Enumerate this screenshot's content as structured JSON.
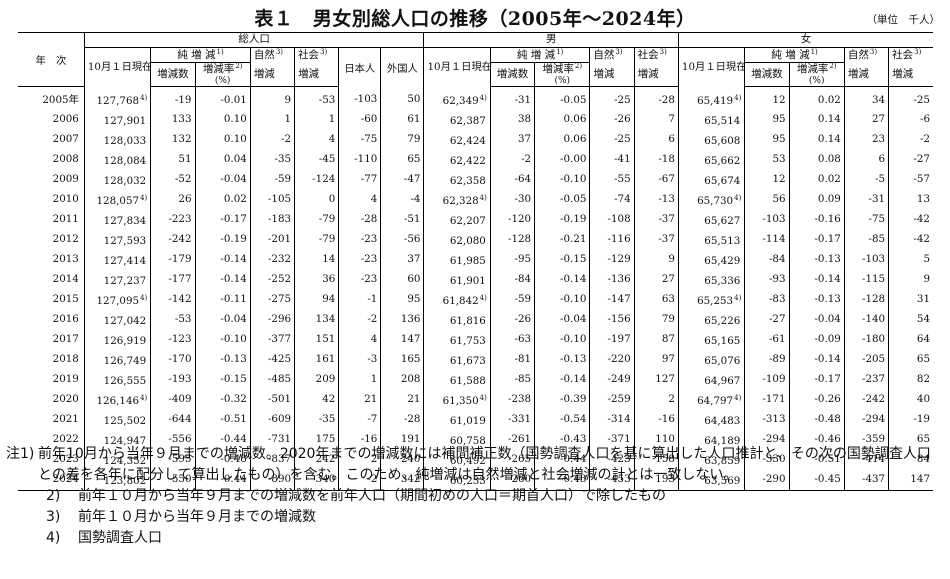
{
  "title": "表１　男女別総人口の推移（2005年～2024年）",
  "unit": "（単位　千人）",
  "headers": {
    "year": "年　次",
    "total": "総人口",
    "male": "男",
    "female": "女",
    "oct1_pop": "10月１日現在人口",
    "net_change": "純 増 減",
    "natural": "自然",
    "social": "社会",
    "change_word": "増減",
    "change_count": "増減数",
    "change_rate": "増減率",
    "rate_unit": "(%)",
    "japanese": "日本人",
    "foreign": "外国人",
    "fn1": "1)",
    "fn2": "2)",
    "fn3": "3)",
    "fn4": "4)"
  },
  "rows": [
    {
      "year": "2005年",
      "t_pop": "127,768",
      "t_fn": "4)",
      "t_nc": "-19",
      "t_nr": "-0.01",
      "t_nat": "9",
      "t_soc": "-53",
      "t_jp": "-103",
      "t_fr": "50",
      "m_pop": "62,349",
      "m_fn": "4)",
      "m_nc": "-31",
      "m_nr": "-0.05",
      "m_nat": "-25",
      "m_soc": "-28",
      "f_pop": "65,419",
      "f_fn": "4)",
      "f_nc": "12",
      "f_nr": "0.02",
      "f_nat": "34",
      "f_soc": "-25"
    },
    {
      "year": "2006",
      "t_pop": "127,901",
      "t_fn": "",
      "t_nc": "133",
      "t_nr": "0.10",
      "t_nat": "1",
      "t_soc": "1",
      "t_jp": "-60",
      "t_fr": "61",
      "m_pop": "62,387",
      "m_fn": "",
      "m_nc": "38",
      "m_nr": "0.06",
      "m_nat": "-26",
      "m_soc": "7",
      "f_pop": "65,514",
      "f_fn": "",
      "f_nc": "95",
      "f_nr": "0.14",
      "f_nat": "27",
      "f_soc": "-6"
    },
    {
      "year": "2007",
      "t_pop": "128,033",
      "t_fn": "",
      "t_nc": "132",
      "t_nr": "0.10",
      "t_nat": "-2",
      "t_soc": "4",
      "t_jp": "-75",
      "t_fr": "79",
      "m_pop": "62,424",
      "m_fn": "",
      "m_nc": "37",
      "m_nr": "0.06",
      "m_nat": "-25",
      "m_soc": "6",
      "f_pop": "65,608",
      "f_fn": "",
      "f_nc": "95",
      "f_nr": "0.14",
      "f_nat": "23",
      "f_soc": "-2"
    },
    {
      "year": "2008",
      "t_pop": "128,084",
      "t_fn": "",
      "t_nc": "51",
      "t_nr": "0.04",
      "t_nat": "-35",
      "t_soc": "-45",
      "t_jp": "-110",
      "t_fr": "65",
      "m_pop": "62,422",
      "m_fn": "",
      "m_nc": "-2",
      "m_nr": "-0.00",
      "m_nat": "-41",
      "m_soc": "-18",
      "f_pop": "65,662",
      "f_fn": "",
      "f_nc": "53",
      "f_nr": "0.08",
      "f_nat": "6",
      "f_soc": "-27"
    },
    {
      "year": "2009",
      "t_pop": "128,032",
      "t_fn": "",
      "t_nc": "-52",
      "t_nr": "-0.04",
      "t_nat": "-59",
      "t_soc": "-124",
      "t_jp": "-77",
      "t_fr": "-47",
      "m_pop": "62,358",
      "m_fn": "",
      "m_nc": "-64",
      "m_nr": "-0.10",
      "m_nat": "-55",
      "m_soc": "-67",
      "f_pop": "65,674",
      "f_fn": "",
      "f_nc": "12",
      "f_nr": "0.02",
      "f_nat": "-5",
      "f_soc": "-57"
    },
    {
      "year": "2010",
      "t_pop": "128,057",
      "t_fn": "4)",
      "t_nc": "26",
      "t_nr": "0.02",
      "t_nat": "-105",
      "t_soc": "0",
      "t_jp": "4",
      "t_fr": "-4",
      "m_pop": "62,328",
      "m_fn": "4)",
      "m_nc": "-30",
      "m_nr": "-0.05",
      "m_nat": "-74",
      "m_soc": "-13",
      "f_pop": "65,730",
      "f_fn": "4)",
      "f_nc": "56",
      "f_nr": "0.09",
      "f_nat": "-31",
      "f_soc": "13"
    },
    {
      "year": "2011",
      "t_pop": "127,834",
      "t_fn": "",
      "t_nc": "-223",
      "t_nr": "-0.17",
      "t_nat": "-183",
      "t_soc": "-79",
      "t_jp": "-28",
      "t_fr": "-51",
      "m_pop": "62,207",
      "m_fn": "",
      "m_nc": "-120",
      "m_nr": "-0.19",
      "m_nat": "-108",
      "m_soc": "-37",
      "f_pop": "65,627",
      "f_fn": "",
      "f_nc": "-103",
      "f_nr": "-0.16",
      "f_nat": "-75",
      "f_soc": "-42"
    },
    {
      "year": "2012",
      "t_pop": "127,593",
      "t_fn": "",
      "t_nc": "-242",
      "t_nr": "-0.19",
      "t_nat": "-201",
      "t_soc": "-79",
      "t_jp": "-23",
      "t_fr": "-56",
      "m_pop": "62,080",
      "m_fn": "",
      "m_nc": "-128",
      "m_nr": "-0.21",
      "m_nat": "-116",
      "m_soc": "-37",
      "f_pop": "65,513",
      "f_fn": "",
      "f_nc": "-114",
      "f_nr": "-0.17",
      "f_nat": "-85",
      "f_soc": "-42"
    },
    {
      "year": "2013",
      "t_pop": "127,414",
      "t_fn": "",
      "t_nc": "-179",
      "t_nr": "-0.14",
      "t_nat": "-232",
      "t_soc": "14",
      "t_jp": "-23",
      "t_fr": "37",
      "m_pop": "61,985",
      "m_fn": "",
      "m_nc": "-95",
      "m_nr": "-0.15",
      "m_nat": "-129",
      "m_soc": "9",
      "f_pop": "65,429",
      "f_fn": "",
      "f_nc": "-84",
      "f_nr": "-0.13",
      "f_nat": "-103",
      "f_soc": "5"
    },
    {
      "year": "2014",
      "t_pop": "127,237",
      "t_fn": "",
      "t_nc": "-177",
      "t_nr": "-0.14",
      "t_nat": "-252",
      "t_soc": "36",
      "t_jp": "-23",
      "t_fr": "60",
      "m_pop": "61,901",
      "m_fn": "",
      "m_nc": "-84",
      "m_nr": "-0.14",
      "m_nat": "-136",
      "m_soc": "27",
      "f_pop": "65,336",
      "f_fn": "",
      "f_nc": "-93",
      "f_nr": "-0.14",
      "f_nat": "-115",
      "f_soc": "9"
    },
    {
      "year": "2015",
      "t_pop": "127,095",
      "t_fn": "4)",
      "t_nc": "-142",
      "t_nr": "-0.11",
      "t_nat": "-275",
      "t_soc": "94",
      "t_jp": "-1",
      "t_fr": "95",
      "m_pop": "61,842",
      "m_fn": "4)",
      "m_nc": "-59",
      "m_nr": "-0.10",
      "m_nat": "-147",
      "m_soc": "63",
      "f_pop": "65,253",
      "f_fn": "4)",
      "f_nc": "-83",
      "f_nr": "-0.13",
      "f_nat": "-128",
      "f_soc": "31"
    },
    {
      "year": "2016",
      "t_pop": "127,042",
      "t_fn": "",
      "t_nc": "-53",
      "t_nr": "-0.04",
      "t_nat": "-296",
      "t_soc": "134",
      "t_jp": "-2",
      "t_fr": "136",
      "m_pop": "61,816",
      "m_fn": "",
      "m_nc": "-26",
      "m_nr": "-0.04",
      "m_nat": "-156",
      "m_soc": "79",
      "f_pop": "65,226",
      "f_fn": "",
      "f_nc": "-27",
      "f_nr": "-0.04",
      "f_nat": "-140",
      "f_soc": "54"
    },
    {
      "year": "2017",
      "t_pop": "126,919",
      "t_fn": "",
      "t_nc": "-123",
      "t_nr": "-0.10",
      "t_nat": "-377",
      "t_soc": "151",
      "t_jp": "4",
      "t_fr": "147",
      "m_pop": "61,753",
      "m_fn": "",
      "m_nc": "-63",
      "m_nr": "-0.10",
      "m_nat": "-197",
      "m_soc": "87",
      "f_pop": "65,165",
      "f_fn": "",
      "f_nc": "-61",
      "f_nr": "-0.09",
      "f_nat": "-180",
      "f_soc": "64"
    },
    {
      "year": "2018",
      "t_pop": "126,749",
      "t_fn": "",
      "t_nc": "-170",
      "t_nr": "-0.13",
      "t_nat": "-425",
      "t_soc": "161",
      "t_jp": "-3",
      "t_fr": "165",
      "m_pop": "61,673",
      "m_fn": "",
      "m_nc": "-81",
      "m_nr": "-0.13",
      "m_nat": "-220",
      "m_soc": "97",
      "f_pop": "65,076",
      "f_fn": "",
      "f_nc": "-89",
      "f_nr": "-0.14",
      "f_nat": "-205",
      "f_soc": "65"
    },
    {
      "year": "2019",
      "t_pop": "126,555",
      "t_fn": "",
      "t_nc": "-193",
      "t_nr": "-0.15",
      "t_nat": "-485",
      "t_soc": "209",
      "t_jp": "1",
      "t_fr": "208",
      "m_pop": "61,588",
      "m_fn": "",
      "m_nc": "-85",
      "m_nr": "-0.14",
      "m_nat": "-249",
      "m_soc": "127",
      "f_pop": "64,967",
      "f_fn": "",
      "f_nc": "-109",
      "f_nr": "-0.17",
      "f_nat": "-237",
      "f_soc": "82"
    },
    {
      "year": "2020",
      "t_pop": "126,146",
      "t_fn": "4)",
      "t_nc": "-409",
      "t_nr": "-0.32",
      "t_nat": "-501",
      "t_soc": "42",
      "t_jp": "21",
      "t_fr": "21",
      "m_pop": "61,350",
      "m_fn": "4)",
      "m_nc": "-238",
      "m_nr": "-0.39",
      "m_nat": "-259",
      "m_soc": "2",
      "f_pop": "64,797",
      "f_fn": "4)",
      "f_nc": "-171",
      "f_nr": "-0.26",
      "f_nat": "-242",
      "f_soc": "40"
    },
    {
      "year": "2021",
      "t_pop": "125,502",
      "t_fn": "",
      "t_nc": "-644",
      "t_nr": "-0.51",
      "t_nat": "-609",
      "t_soc": "-35",
      "t_jp": "-7",
      "t_fr": "-28",
      "m_pop": "61,019",
      "m_fn": "",
      "m_nc": "-331",
      "m_nr": "-0.54",
      "m_nat": "-314",
      "m_soc": "-16",
      "f_pop": "64,483",
      "f_fn": "",
      "f_nc": "-313",
      "f_nr": "-0.48",
      "f_nat": "-294",
      "f_soc": "-19"
    },
    {
      "year": "2022",
      "t_pop": "124,947",
      "t_fn": "",
      "t_nc": "-556",
      "t_nr": "-0.44",
      "t_nat": "-731",
      "t_soc": "175",
      "t_jp": "-16",
      "t_fr": "191",
      "m_pop": "60,758",
      "m_fn": "",
      "m_nc": "-261",
      "m_nr": "-0.43",
      "m_nat": "-371",
      "m_soc": "110",
      "f_pop": "64,189",
      "f_fn": "",
      "f_nc": "-294",
      "f_nr": "-0.46",
      "f_nat": "-359",
      "f_soc": "65"
    },
    {
      "year": "2023",
      "t_pop": "124,352",
      "t_fn": "",
      "t_nc": "-595",
      "t_nr": "-0.48",
      "t_nat": "-837",
      "t_soc": "242",
      "t_jp": "2",
      "t_fr": "240",
      "m_pop": "60,492",
      "m_fn": "",
      "m_nc": "-265",
      "m_nr": "-0.44",
      "m_nat": "-423",
      "m_soc": "158",
      "f_pop": "63,859",
      "f_fn": "",
      "f_nc": "-330",
      "f_nr": "-0.51",
      "f_nat": "-414",
      "f_soc": "84"
    },
    {
      "year": "2024",
      "t_pop": "123,802",
      "t_fn": "",
      "t_nc": "-550",
      "t_nr": "-0.44",
      "t_nat": "-890",
      "t_soc": "340",
      "t_jp": "-2",
      "t_fr": "342",
      "m_pop": "60,233",
      "m_fn": "",
      "m_nc": "-260",
      "m_nr": "-0.43",
      "m_nat": "-453",
      "m_soc": "193",
      "f_pop": "63,569",
      "f_fn": "",
      "f_nc": "-290",
      "f_nr": "-0.45",
      "f_nat": "-437",
      "f_soc": "147"
    }
  ],
  "notes": [
    {
      "num": "注1)",
      "text": "前年10月から当年９月までの増減数。2020年までの増減数には補間補正数（国勢調査人口を基に算出した人口推計と、その次の国勢調査人口との差を各年に配分して算出したもの）を含む。このため、純増減は自然増減と社会増減の計とは一致しない。"
    },
    {
      "num": "2)",
      "text": "前年１０月から当年９月までの増減数を前年人口（期間初めの人口＝期首人口）で除したもの"
    },
    {
      "num": "3)",
      "text": "前年１０月から当年９月までの増減数"
    },
    {
      "num": "4)",
      "text": "国勢調査人口"
    }
  ]
}
